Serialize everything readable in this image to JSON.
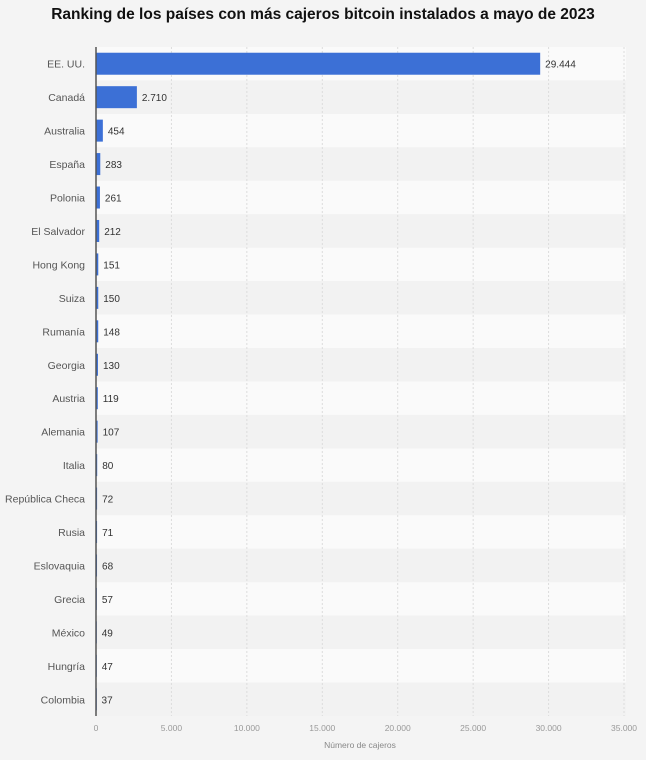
{
  "chart_data": {
    "type": "bar",
    "orientation": "horizontal",
    "title": "Ranking de los países con más cajeros bitcoin instalados a mayo de 2023",
    "xlabel": "Número de cajeros",
    "ylabel": "",
    "xlim": [
      0,
      35000
    ],
    "xticks": [
      0,
      5000,
      10000,
      15000,
      20000,
      25000,
      30000,
      35000
    ],
    "xtick_labels": [
      "0",
      "5.000",
      "10.000",
      "15.000",
      "20.000",
      "25.000",
      "30.000",
      "35.000"
    ],
    "grid": true,
    "bar_color": "#3c70d6",
    "categories": [
      "EE. UU.",
      "Canadá",
      "Australia",
      "España",
      "Polonia",
      "El Salvador",
      "Hong Kong",
      "Suiza",
      "Rumanía",
      "Georgia",
      "Austria",
      "Alemania",
      "Italia",
      "República Checa",
      "Rusia",
      "Eslovaquia",
      "Grecia",
      "México",
      "Hungría",
      "Colombia"
    ],
    "values": [
      29444,
      2710,
      454,
      283,
      261,
      212,
      151,
      150,
      148,
      130,
      119,
      107,
      80,
      72,
      71,
      68,
      57,
      49,
      47,
      37
    ],
    "value_labels": [
      "29.444",
      "2.710",
      "454",
      "283",
      "261",
      "212",
      "151",
      "150",
      "148",
      "130",
      "119",
      "107",
      "80",
      "72",
      "71",
      "68",
      "57",
      "49",
      "47",
      "37"
    ]
  }
}
